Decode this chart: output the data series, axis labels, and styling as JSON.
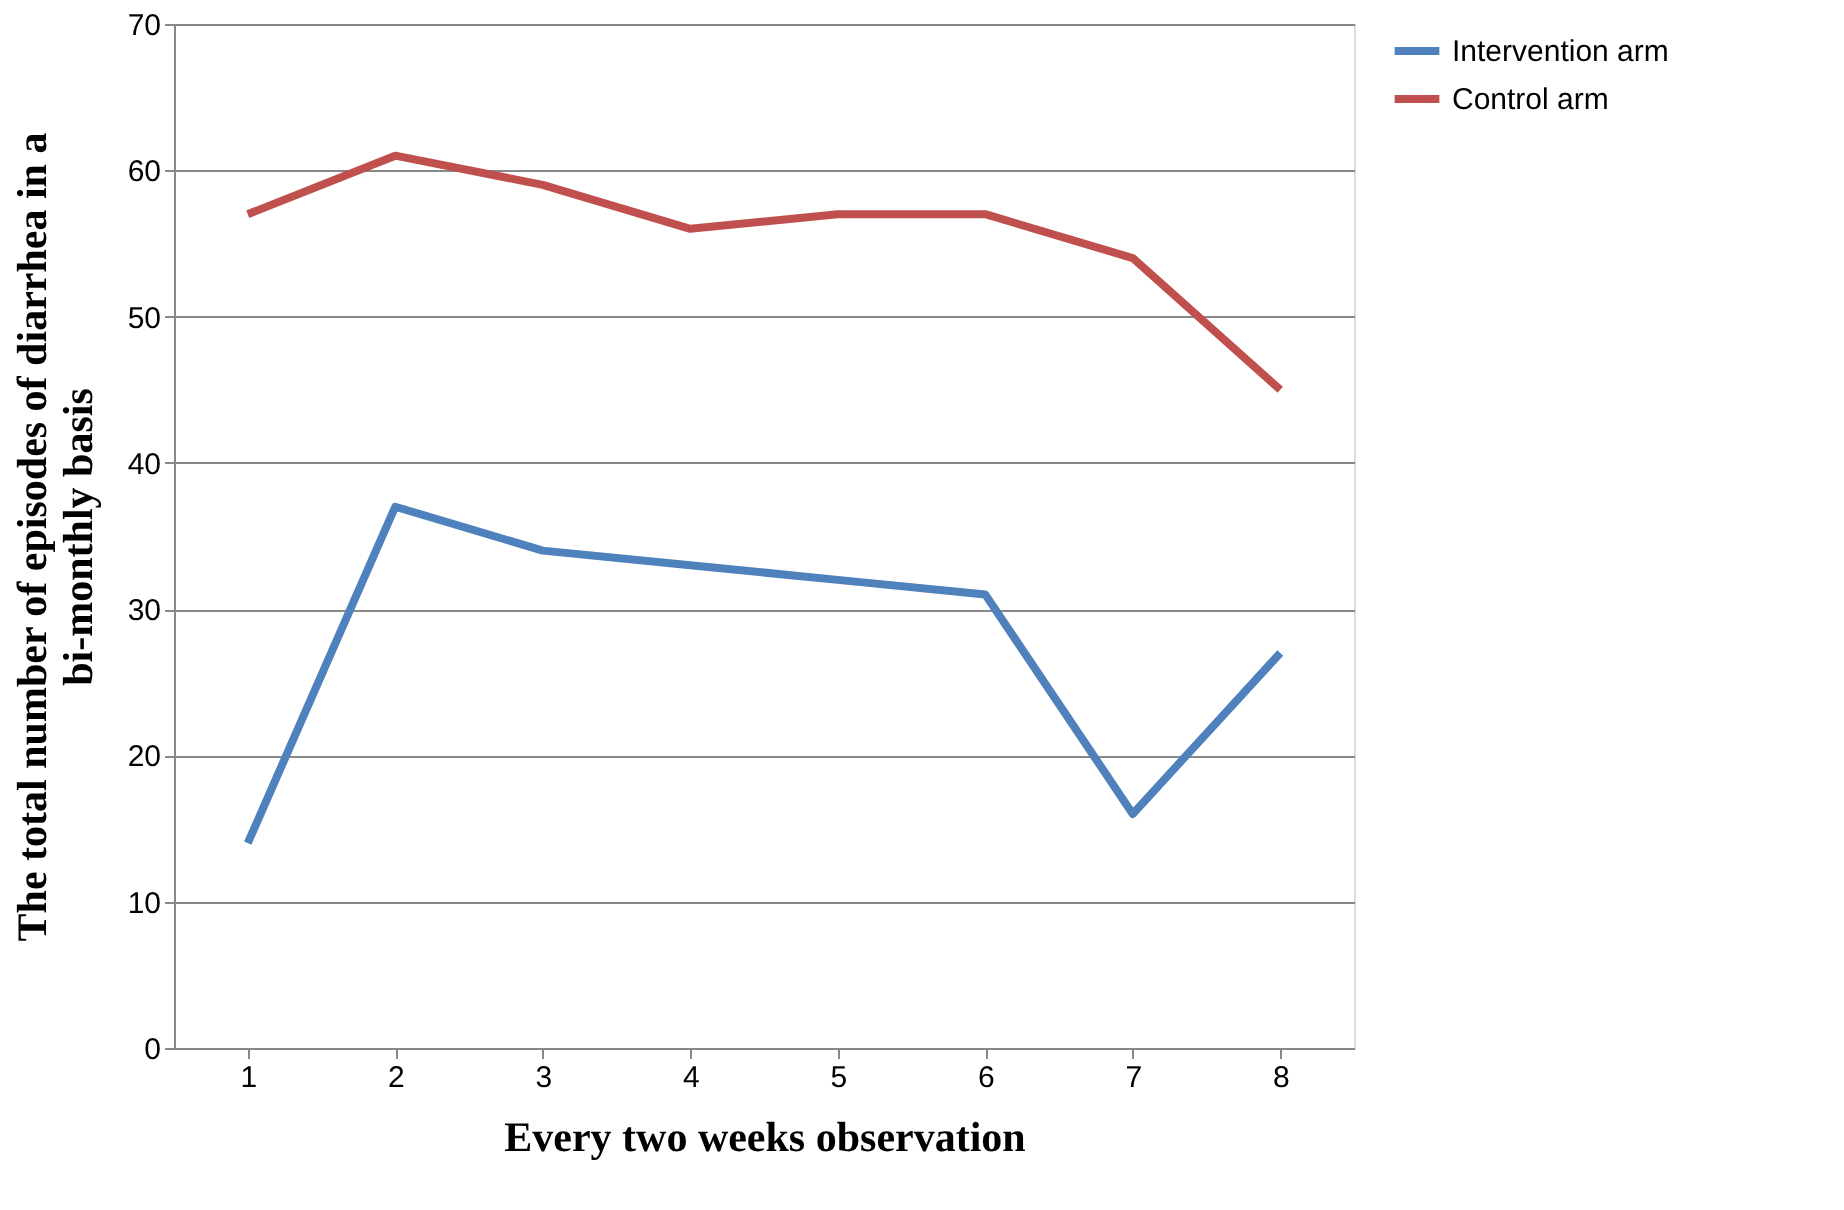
{
  "chart_data": {
    "type": "line",
    "xlabel": "Every two weeks observation",
    "ylabel": "The total number of episodes of diarrhea in a\nbi-monthly basis",
    "categories": [
      "1",
      "2",
      "3",
      "4",
      "5",
      "6",
      "7",
      "8"
    ],
    "series": [
      {
        "name": "Intervention arm",
        "color": "#4f81bd",
        "values": [
          14,
          37,
          34,
          33,
          32,
          31,
          16,
          27
        ]
      },
      {
        "name": "Control arm",
        "color": "#c0504d",
        "values": [
          57,
          61,
          59,
          56,
          57,
          57,
          54,
          45
        ]
      }
    ],
    "ylim": [
      0,
      70
    ],
    "yticks": [
      0,
      10,
      20,
      30,
      40,
      50,
      60,
      70
    ],
    "grid": "y",
    "legend": "right",
    "marker": "none",
    "line_style": "solid"
  }
}
